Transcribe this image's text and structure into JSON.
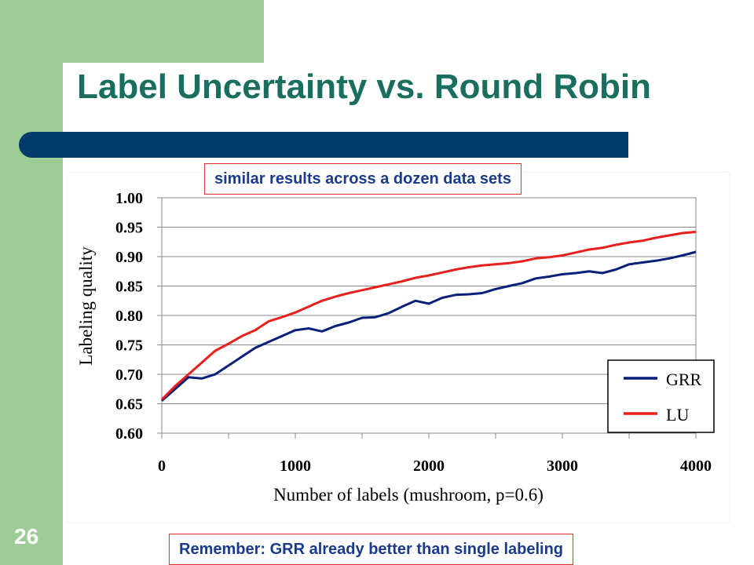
{
  "slide": {
    "title": "Label Uncertainty vs. Round Robin",
    "number": "26",
    "callout_top": "similar results across a dozen data sets",
    "callout_bottom": "Remember:  GRR already better than single labeling"
  },
  "colors": {
    "title": "#1a6e5f",
    "accent_bar": "#003a6a",
    "side_green": "#9dcc97",
    "callout_border": "#e0312f",
    "callout_text": "#1a3a8c"
  },
  "chart_data": {
    "type": "line",
    "title": "",
    "xlabel": "Number of labels (mushroom, p=0.6)",
    "ylabel": "Labeling quality",
    "xlim": [
      0,
      4000
    ],
    "ylim": [
      0.6,
      1.0
    ],
    "xticks": [
      0,
      1000,
      2000,
      3000,
      4000
    ],
    "xtick_labels": [
      "0",
      "1000",
      "2000",
      "3000",
      "4000"
    ],
    "yticks": [
      0.6,
      0.65,
      0.7,
      0.75,
      0.8,
      0.85,
      0.9,
      0.95,
      1.0
    ],
    "ytick_labels": [
      "0.60",
      "0.65",
      "0.70",
      "0.75",
      "0.80",
      "0.85",
      "0.90",
      "0.95",
      "1.00"
    ],
    "grid": "horizontal",
    "legend": "lower-right",
    "series": [
      {
        "name": "GRR",
        "color": "#0a1f7a",
        "x": [
          0,
          100,
          200,
          300,
          400,
          500,
          600,
          700,
          800,
          900,
          1000,
          1100,
          1200,
          1300,
          1400,
          1500,
          1600,
          1700,
          1800,
          1900,
          2000,
          2100,
          2200,
          2300,
          2400,
          2500,
          2600,
          2700,
          2800,
          2900,
          3000,
          3100,
          3200,
          3300,
          3400,
          3500,
          3600,
          3700,
          3800,
          3900,
          4000
        ],
        "y": [
          0.655,
          0.675,
          0.695,
          0.693,
          0.7,
          0.715,
          0.73,
          0.745,
          0.755,
          0.765,
          0.775,
          0.778,
          0.773,
          0.782,
          0.788,
          0.796,
          0.797,
          0.804,
          0.815,
          0.825,
          0.82,
          0.83,
          0.835,
          0.836,
          0.838,
          0.845,
          0.85,
          0.855,
          0.863,
          0.866,
          0.87,
          0.872,
          0.875,
          0.872,
          0.878,
          0.887,
          0.89,
          0.893,
          0.897,
          0.902,
          0.908
        ]
      },
      {
        "name": "LU",
        "color": "#e8201c",
        "x": [
          0,
          100,
          200,
          300,
          400,
          500,
          600,
          700,
          800,
          900,
          1000,
          1100,
          1200,
          1300,
          1400,
          1500,
          1600,
          1700,
          1800,
          1900,
          2000,
          2100,
          2200,
          2300,
          2400,
          2500,
          2600,
          2700,
          2800,
          2900,
          3000,
          3100,
          3200,
          3300,
          3400,
          3500,
          3600,
          3700,
          3800,
          3900,
          4000
        ],
        "y": [
          0.657,
          0.68,
          0.7,
          0.72,
          0.74,
          0.752,
          0.765,
          0.775,
          0.79,
          0.797,
          0.805,
          0.815,
          0.825,
          0.832,
          0.838,
          0.843,
          0.848,
          0.853,
          0.858,
          0.864,
          0.868,
          0.873,
          0.878,
          0.882,
          0.885,
          0.887,
          0.889,
          0.892,
          0.897,
          0.899,
          0.902,
          0.907,
          0.912,
          0.915,
          0.92,
          0.924,
          0.927,
          0.932,
          0.936,
          0.94,
          0.942
        ]
      }
    ]
  }
}
